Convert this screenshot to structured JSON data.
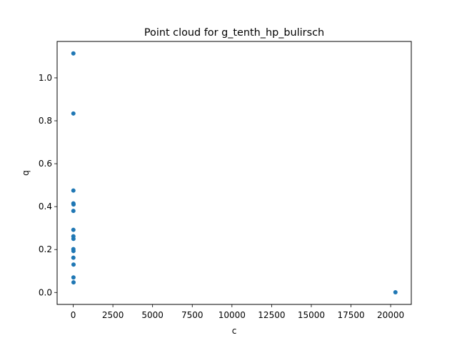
{
  "chart_data": {
    "type": "scatter",
    "title": "Point cloud for g_tenth_hp_bulirsch",
    "xlabel": "c",
    "ylabel": "q",
    "xlim": [
      -1014,
      21300
    ],
    "ylim": [
      -0.0557,
      1.1697
    ],
    "x_ticks": [
      0,
      2500,
      5000,
      7500,
      10000,
      12500,
      15000,
      17500,
      20000
    ],
    "y_ticks": [
      0.0,
      0.2,
      0.4,
      0.6,
      0.8,
      1.0
    ],
    "x_tick_labels": [
      "0",
      "2500",
      "5000",
      "7500",
      "10000",
      "12500",
      "15000",
      "17500",
      "20000"
    ],
    "y_tick_labels": [
      "0.0",
      "0.2",
      "0.4",
      "0.6",
      "0.8",
      "1.0"
    ],
    "grid": false,
    "point_color": "#1f77b4",
    "points": [
      {
        "x": 10,
        "y": 1.114
      },
      {
        "x": 10,
        "y": 0.834
      },
      {
        "x": 10,
        "y": 0.475
      },
      {
        "x": 10,
        "y": 0.415
      },
      {
        "x": 20,
        "y": 0.41
      },
      {
        "x": 10,
        "y": 0.38
      },
      {
        "x": 10,
        "y": 0.292
      },
      {
        "x": 10,
        "y": 0.262
      },
      {
        "x": 15,
        "y": 0.25
      },
      {
        "x": 10,
        "y": 0.202
      },
      {
        "x": 15,
        "y": 0.193
      },
      {
        "x": 10,
        "y": 0.162
      },
      {
        "x": 20,
        "y": 0.13
      },
      {
        "x": 15,
        "y": 0.07
      },
      {
        "x": 20,
        "y": 0.047
      },
      {
        "x": 20300,
        "y": 0.001
      }
    ]
  }
}
